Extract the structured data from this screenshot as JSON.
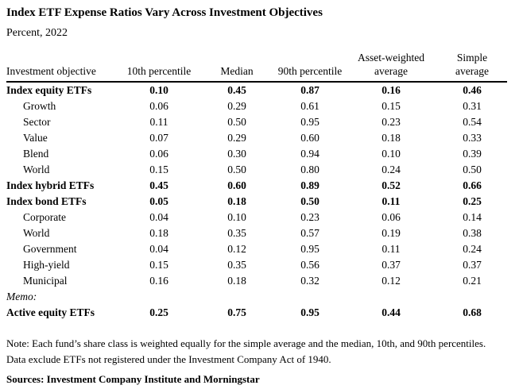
{
  "title": "Index ETF Expense Ratios Vary Across Investment Objectives",
  "subtitle": "Percent, 2022",
  "table": {
    "headers": [
      {
        "lines": [
          "Investment objective"
        ]
      },
      {
        "lines": [
          "10th percentile"
        ]
      },
      {
        "lines": [
          "Median"
        ]
      },
      {
        "lines": [
          "90th percentile"
        ]
      },
      {
        "lines": [
          "Asset-weighted",
          "average"
        ]
      },
      {
        "lines": [
          "Simple",
          "average"
        ]
      }
    ],
    "rows": [
      {
        "label": "Index equity ETFs",
        "style": "bold",
        "indent": false,
        "values": [
          "0.10",
          "0.45",
          "0.87",
          "0.16",
          "0.46"
        ]
      },
      {
        "label": "Growth",
        "style": "normal",
        "indent": true,
        "values": [
          "0.06",
          "0.29",
          "0.61",
          "0.15",
          "0.31"
        ]
      },
      {
        "label": "Sector",
        "style": "normal",
        "indent": true,
        "values": [
          "0.11",
          "0.50",
          "0.95",
          "0.23",
          "0.54"
        ]
      },
      {
        "label": "Value",
        "style": "normal",
        "indent": true,
        "values": [
          "0.07",
          "0.29",
          "0.60",
          "0.18",
          "0.33"
        ]
      },
      {
        "label": "Blend",
        "style": "normal",
        "indent": true,
        "values": [
          "0.06",
          "0.30",
          "0.94",
          "0.10",
          "0.39"
        ]
      },
      {
        "label": "World",
        "style": "normal",
        "indent": true,
        "values": [
          "0.15",
          "0.50",
          "0.80",
          "0.24",
          "0.50"
        ]
      },
      {
        "label": "Index hybrid ETFs",
        "style": "bold",
        "indent": false,
        "values": [
          "0.45",
          "0.60",
          "0.89",
          "0.52",
          "0.66"
        ]
      },
      {
        "label": "Index bond ETFs",
        "style": "bold",
        "indent": false,
        "values": [
          "0.05",
          "0.18",
          "0.50",
          "0.11",
          "0.25"
        ]
      },
      {
        "label": "Corporate",
        "style": "normal",
        "indent": true,
        "values": [
          "0.04",
          "0.10",
          "0.23",
          "0.06",
          "0.14"
        ]
      },
      {
        "label": "World",
        "style": "normal",
        "indent": true,
        "values": [
          "0.18",
          "0.35",
          "0.57",
          "0.19",
          "0.38"
        ]
      },
      {
        "label": "Government",
        "style": "normal",
        "indent": true,
        "values": [
          "0.04",
          "0.12",
          "0.95",
          "0.11",
          "0.24"
        ]
      },
      {
        "label": "High-yield",
        "style": "normal",
        "indent": true,
        "values": [
          "0.15",
          "0.35",
          "0.56",
          "0.37",
          "0.37"
        ]
      },
      {
        "label": "Municipal",
        "style": "normal",
        "indent": true,
        "values": [
          "0.16",
          "0.18",
          "0.32",
          "0.12",
          "0.21"
        ]
      },
      {
        "label": "Memo:",
        "style": "italic",
        "indent": false,
        "values": [
          "",
          "",
          "",
          "",
          ""
        ]
      },
      {
        "label": "Active equity ETFs",
        "style": "bold",
        "indent": false,
        "values": [
          "0.25",
          "0.75",
          "0.95",
          "0.44",
          "0.68"
        ]
      }
    ]
  },
  "notes": {
    "line1": "Note: Each fund’s share class is weighted equally for the simple average and the median, 10th, and 90th percentiles.",
    "line2": "Data exclude ETFs not registered under the Investment Company Act of 1940.",
    "sources": "Sources: Investment Company Institute and Morningstar"
  }
}
